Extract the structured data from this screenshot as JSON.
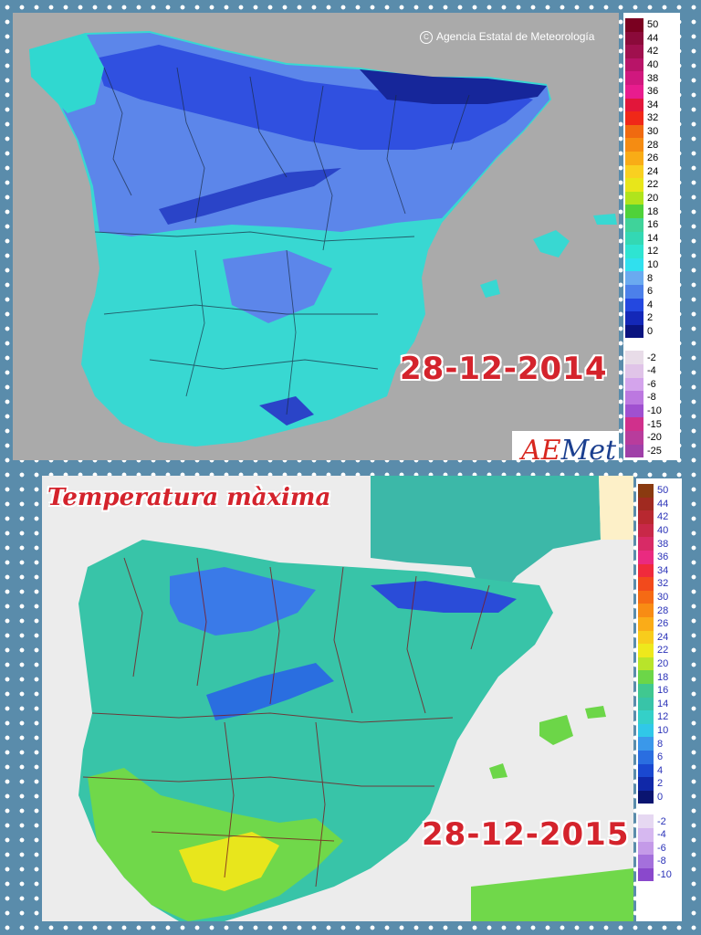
{
  "top_map": {
    "date": "28-12-2014",
    "credit": "Agencia Estatal de Meteorología",
    "credit_icon": "copyright-icon",
    "logo_text": "AEmet",
    "legend": [
      {
        "label": "50",
        "color": "#7a0020"
      },
      {
        "label": "44",
        "color": "#8b0a3a"
      },
      {
        "label": "42",
        "color": "#a0104e"
      },
      {
        "label": "40",
        "color": "#b81468"
      },
      {
        "label": "38",
        "color": "#d0187e"
      },
      {
        "label": "36",
        "color": "#e81c8e"
      },
      {
        "label": "34",
        "color": "#e2163a"
      },
      {
        "label": "32",
        "color": "#f02818"
      },
      {
        "label": "30",
        "color": "#f06a10"
      },
      {
        "label": "28",
        "color": "#f58c12"
      },
      {
        "label": "26",
        "color": "#f9ac16"
      },
      {
        "label": "24",
        "color": "#f9d020"
      },
      {
        "label": "22",
        "color": "#e8e61a"
      },
      {
        "label": "20",
        "color": "#b0e41c"
      },
      {
        "label": "18",
        "color": "#4fd23a"
      },
      {
        "label": "16",
        "color": "#3fd39a"
      },
      {
        "label": "14",
        "color": "#33d8b4"
      },
      {
        "label": "12",
        "color": "#2ee4d2"
      },
      {
        "label": "10",
        "color": "#30e0ee"
      },
      {
        "label": "8",
        "color": "#6aaaf0"
      },
      {
        "label": "6",
        "color": "#4c80ea"
      },
      {
        "label": "4",
        "color": "#2448e0"
      },
      {
        "label": "2",
        "color": "#1428b8"
      },
      {
        "label": "0",
        "color": "#0a1480"
      },
      {
        "label": "-2",
        "color": "#e8dce8"
      },
      {
        "label": "-4",
        "color": "#e0c4e8"
      },
      {
        "label": "-6",
        "color": "#d4a4ec"
      },
      {
        "label": "-8",
        "color": "#bc78e0"
      },
      {
        "label": "-10",
        "color": "#a050d0"
      },
      {
        "label": "-15",
        "color": "#d0308c"
      },
      {
        "label": "-20",
        "color": "#b83c9c"
      },
      {
        "label": "-25",
        "color": "#a040a8"
      }
    ]
  },
  "bottom_map": {
    "title": "Temperatura màxima",
    "date": "28-12-2015",
    "legend": [
      {
        "label": "50",
        "color": "#8a3a10"
      },
      {
        "label": "44",
        "color": "#a02a20"
      },
      {
        "label": "42",
        "color": "#b82830"
      },
      {
        "label": "40",
        "color": "#c82848"
      },
      {
        "label": "38",
        "color": "#d82a66"
      },
      {
        "label": "36",
        "color": "#ea2a80"
      },
      {
        "label": "34",
        "color": "#f02a3c"
      },
      {
        "label": "32",
        "color": "#f24a1c"
      },
      {
        "label": "30",
        "color": "#f56a14"
      },
      {
        "label": "28",
        "color": "#f88c14"
      },
      {
        "label": "26",
        "color": "#faac18"
      },
      {
        "label": "24",
        "color": "#f8cc1c"
      },
      {
        "label": "22",
        "color": "#eee81c"
      },
      {
        "label": "20",
        "color": "#b8e42a"
      },
      {
        "label": "18",
        "color": "#6cd648"
      },
      {
        "label": "16",
        "color": "#40c890"
      },
      {
        "label": "14",
        "color": "#38c4a8"
      },
      {
        "label": "12",
        "color": "#34d0c8"
      },
      {
        "label": "10",
        "color": "#30c8e8"
      },
      {
        "label": "8",
        "color": "#3a98ea"
      },
      {
        "label": "6",
        "color": "#2a6ee0"
      },
      {
        "label": "4",
        "color": "#1a48d0"
      },
      {
        "label": "2",
        "color": "#1028a8"
      },
      {
        "label": "0",
        "color": "#0a1470"
      },
      {
        "label": "-2",
        "color": "#e6d8f2"
      },
      {
        "label": "-4",
        "color": "#d6b8f0"
      },
      {
        "label": "-6",
        "color": "#c49ae8"
      },
      {
        "label": "-8",
        "color": "#a470dc"
      },
      {
        "label": "-10",
        "color": "#8a48cc"
      }
    ]
  }
}
